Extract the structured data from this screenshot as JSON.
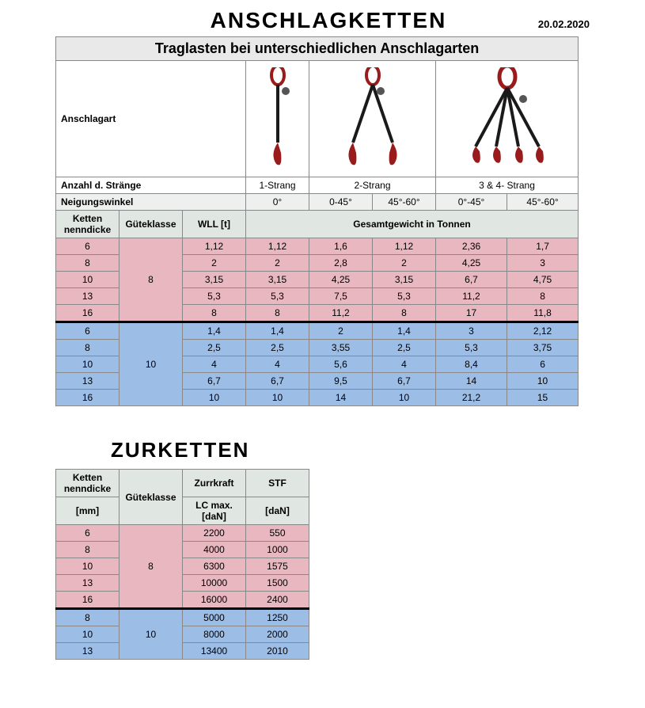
{
  "date": "20.02.2020",
  "title1": "ANSCHLAGKETTEN",
  "banner": "Traglasten bei unterschiedlichen Anschlagarten",
  "labels": {
    "anschlagart": "Anschlagart",
    "straenge": "Anzahl d. Stränge",
    "neigung": "Neigungswinkel",
    "ketten": "Ketten nenndicke",
    "guete": "Güteklasse",
    "wll": "WLL [t]",
    "gesamt": "Gesamtgewicht in Tonnen",
    "mm": "[mm]",
    "zurr": "Zurrkraft",
    "stf": "STF",
    "lc": "LC max. [daN]",
    "dan": "[daN]",
    "strang1": "1-Strang",
    "strang2": "2-Strang",
    "strang34": "3 & 4- Strang"
  },
  "angles": [
    "0°",
    "0-45°",
    "45°-60°",
    "0°-45°",
    "45°-60°"
  ],
  "colors": {
    "pink": "#e8b7c0",
    "blue": "#9cbde6",
    "header": "#e0e7e3",
    "grey": "#eef0ef",
    "chain_red": "#9a1b1b",
    "chain_dark": "#1a1a1a"
  },
  "col_widths_t1": [
    80,
    80,
    80,
    80,
    80,
    80,
    90,
    90
  ],
  "table1": {
    "group8": {
      "guete": "8",
      "rows": [
        {
          "k": "6",
          "v": [
            "1,12",
            "1,12",
            "1,6",
            "1,12",
            "2,36",
            "1,7"
          ]
        },
        {
          "k": "8",
          "v": [
            "2",
            "2",
            "2,8",
            "2",
            "4,25",
            "3"
          ]
        },
        {
          "k": "10",
          "v": [
            "3,15",
            "3,15",
            "4,25",
            "3,15",
            "6,7",
            "4,75"
          ]
        },
        {
          "k": "13",
          "v": [
            "5,3",
            "5,3",
            "7,5",
            "5,3",
            "11,2",
            "8"
          ]
        },
        {
          "k": "16",
          "v": [
            "8",
            "8",
            "11,2",
            "8",
            "17",
            "11,8"
          ]
        }
      ]
    },
    "group10": {
      "guete": "10",
      "rows": [
        {
          "k": "6",
          "v": [
            "1,4",
            "1,4",
            "2",
            "1,4",
            "3",
            "2,12"
          ]
        },
        {
          "k": "8",
          "v": [
            "2,5",
            "2,5",
            "3,55",
            "2,5",
            "5,3",
            "3,75"
          ]
        },
        {
          "k": "10",
          "v": [
            "4",
            "4",
            "5,6",
            "4",
            "8,4",
            "6"
          ]
        },
        {
          "k": "13",
          "v": [
            "6,7",
            "6,7",
            "9,5",
            "6,7",
            "14",
            "10"
          ]
        },
        {
          "k": "16",
          "v": [
            "10",
            "10",
            "14",
            "10",
            "21,2",
            "15"
          ]
        }
      ]
    }
  },
  "title2": "ZURKETTEN",
  "col_widths_t2": [
    80,
    80,
    80,
    80
  ],
  "table2": {
    "group8": {
      "guete": "8",
      "rows": [
        {
          "k": "6",
          "lc": "2200",
          "stf": "550"
        },
        {
          "k": "8",
          "lc": "4000",
          "stf": "1000"
        },
        {
          "k": "10",
          "lc": "6300",
          "stf": "1575"
        },
        {
          "k": "13",
          "lc": "10000",
          "stf": "1500"
        },
        {
          "k": "16",
          "lc": "16000",
          "stf": "2400"
        }
      ]
    },
    "group10": {
      "guete": "10",
      "rows": [
        {
          "k": "8",
          "lc": "5000",
          "stf": "1250"
        },
        {
          "k": "10",
          "lc": "8000",
          "stf": "2000"
        },
        {
          "k": "13",
          "lc": "13400",
          "stf": "2010"
        }
      ]
    }
  }
}
